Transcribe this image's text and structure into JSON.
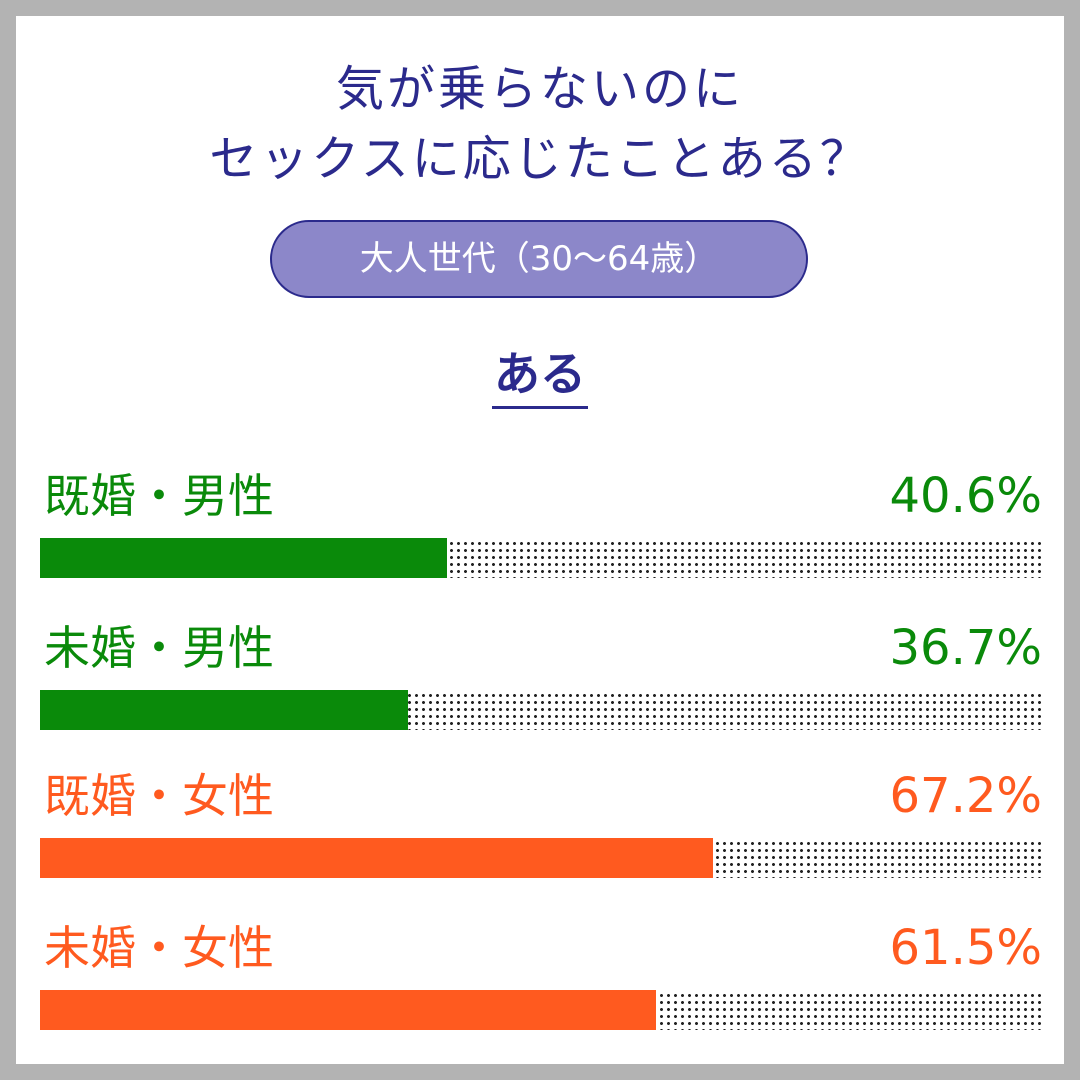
{
  "title": {
    "line1": "気が乗らないのに",
    "line2": "セックスに応じたことある？"
  },
  "subtitle": "大人世代（30〜64歳）",
  "heading": "ある",
  "colors": {
    "male": "#0a8a0a",
    "female": "#ff5a1f",
    "title": "#2b2a8c",
    "pill": "#8c87c9"
  },
  "chart_data": {
    "type": "bar",
    "orientation": "horizontal",
    "categories": [
      "既婚・男性",
      "未婚・男性",
      "既婚・女性",
      "未婚・女性"
    ],
    "values": [
      40.6,
      36.7,
      67.2,
      61.5
    ],
    "value_labels": [
      "40.6%",
      "36.7%",
      "67.2%",
      "61.5%"
    ],
    "xlim": [
      0,
      100
    ],
    "unit": "%"
  }
}
